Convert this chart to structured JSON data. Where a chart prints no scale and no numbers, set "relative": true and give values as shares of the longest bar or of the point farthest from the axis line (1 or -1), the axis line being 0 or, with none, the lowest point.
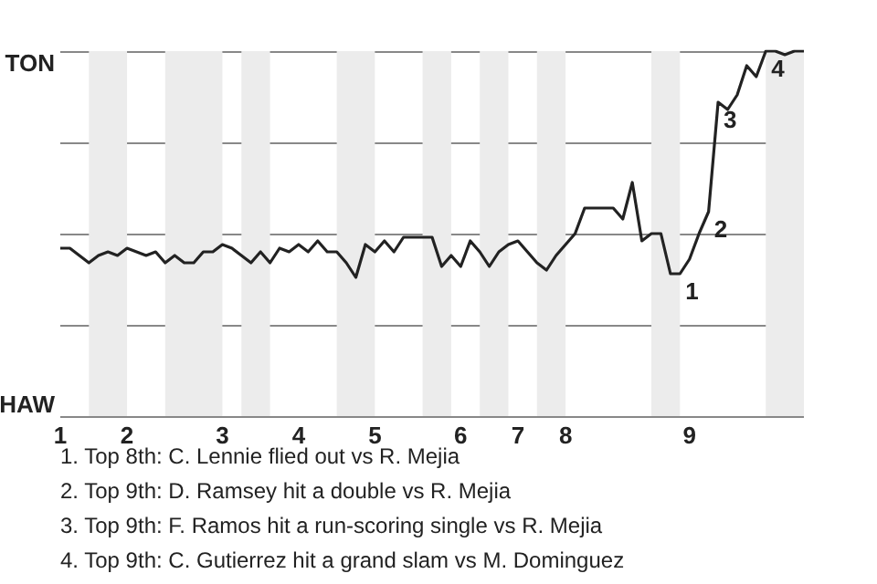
{
  "chart_data": {
    "type": "line",
    "relative": true,
    "categories": [
      "1",
      null,
      null,
      null,
      null,
      null,
      null,
      "2",
      null,
      null,
      null,
      null,
      null,
      null,
      null,
      null,
      null,
      "3",
      null,
      null,
      null,
      null,
      null,
      null,
      null,
      "4",
      null,
      null,
      null,
      null,
      null,
      null,
      null,
      "5",
      null,
      null,
      null,
      null,
      null,
      null,
      null,
      null,
      "6",
      null,
      null,
      null,
      null,
      null,
      "7",
      null,
      null,
      null,
      null,
      "8",
      null,
      null,
      null,
      null,
      null,
      null,
      null,
      null,
      null,
      null,
      null,
      null,
      "9",
      null,
      null,
      null,
      null,
      null,
      null,
      null,
      null,
      null,
      null,
      null,
      null
    ],
    "series": [
      {
        "color": "#222222",
        "values": [
          0.46,
          0.46,
          0.44,
          0.42,
          0.44,
          0.45,
          0.44,
          0.46,
          0.45,
          0.44,
          0.45,
          0.42,
          0.44,
          0.42,
          0.42,
          0.45,
          0.45,
          0.47,
          0.46,
          0.44,
          0.42,
          0.45,
          0.42,
          0.46,
          0.45,
          0.47,
          0.45,
          0.48,
          0.45,
          0.45,
          0.42,
          0.38,
          0.47,
          0.45,
          0.48,
          0.45,
          0.49,
          0.49,
          0.49,
          0.49,
          0.41,
          0.44,
          0.41,
          0.48,
          0.45,
          0.41,
          0.45,
          0.47,
          0.48,
          0.45,
          0.42,
          0.4,
          0.44,
          0.47,
          0.5,
          0.57,
          0.57,
          0.57,
          0.57,
          0.54,
          0.64,
          0.48,
          0.5,
          0.5,
          0.39,
          0.39,
          0.43,
          0.5,
          0.56,
          0.86,
          0.84,
          0.88,
          0.96,
          0.93,
          1,
          1,
          0.99,
          1,
          1
        ]
      }
    ],
    "grid": "y",
    "marker": "none",
    "annotations": [
      "TON",
      "HAW",
      "1",
      "2",
      "3",
      "4",
      "1. Top 8th: C. Lennie flied out vs R. Mejia",
      "2. Top 9th: D. Ramsey hit a double vs R. Mejia",
      "3. Top 9th: F. Ramos hit a run-scoring single vs R. Mejia",
      "4. Top 9th: C. Gutierrez hit a grand slam vs M. Dominguez"
    ]
  }
}
